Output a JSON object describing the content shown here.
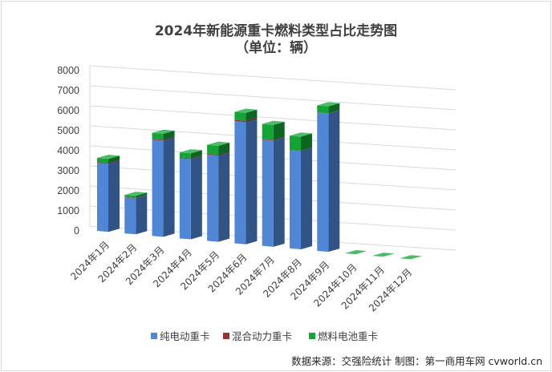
{
  "chart_data": {
    "type": "bar",
    "stacked": true,
    "three_d": true,
    "title": "2024年新能源重卡燃料类型占比走势图",
    "subtitle": "（单位：辆）",
    "categories": [
      "2024年1月",
      "2024年2月",
      "2024年3月",
      "2024年4月",
      "2024年5月",
      "2024年6月",
      "2024年7月",
      "2024年8月",
      "2024年9月",
      "2024年10月",
      "2024年11月",
      "2024年12月"
    ],
    "series": [
      {
        "name": "纯电动重卡",
        "color": "#4f86d6",
        "values": [
          3400,
          1800,
          4800,
          4000,
          4300,
          6100,
          5300,
          4900,
          6900,
          0,
          0,
          0
        ]
      },
      {
        "name": "混合动力重卡",
        "color": "#963232",
        "values": [
          40,
          20,
          40,
          40,
          40,
          60,
          30,
          20,
          10,
          0,
          0,
          0
        ]
      },
      {
        "name": "燃料电池重卡",
        "color": "#12a536",
        "values": [
          200,
          100,
          300,
          250,
          450,
          400,
          750,
          700,
          350,
          0,
          0,
          0
        ]
      }
    ],
    "yticks": [
      0,
      1000,
      2000,
      3000,
      4000,
      5000,
      6000,
      7000,
      8000
    ],
    "ylim": [
      0,
      8000
    ],
    "grid": true,
    "legend_position": "bottom"
  },
  "source": "数据来源：交强险统计  制图：第一商用车网 cvworld.cn"
}
